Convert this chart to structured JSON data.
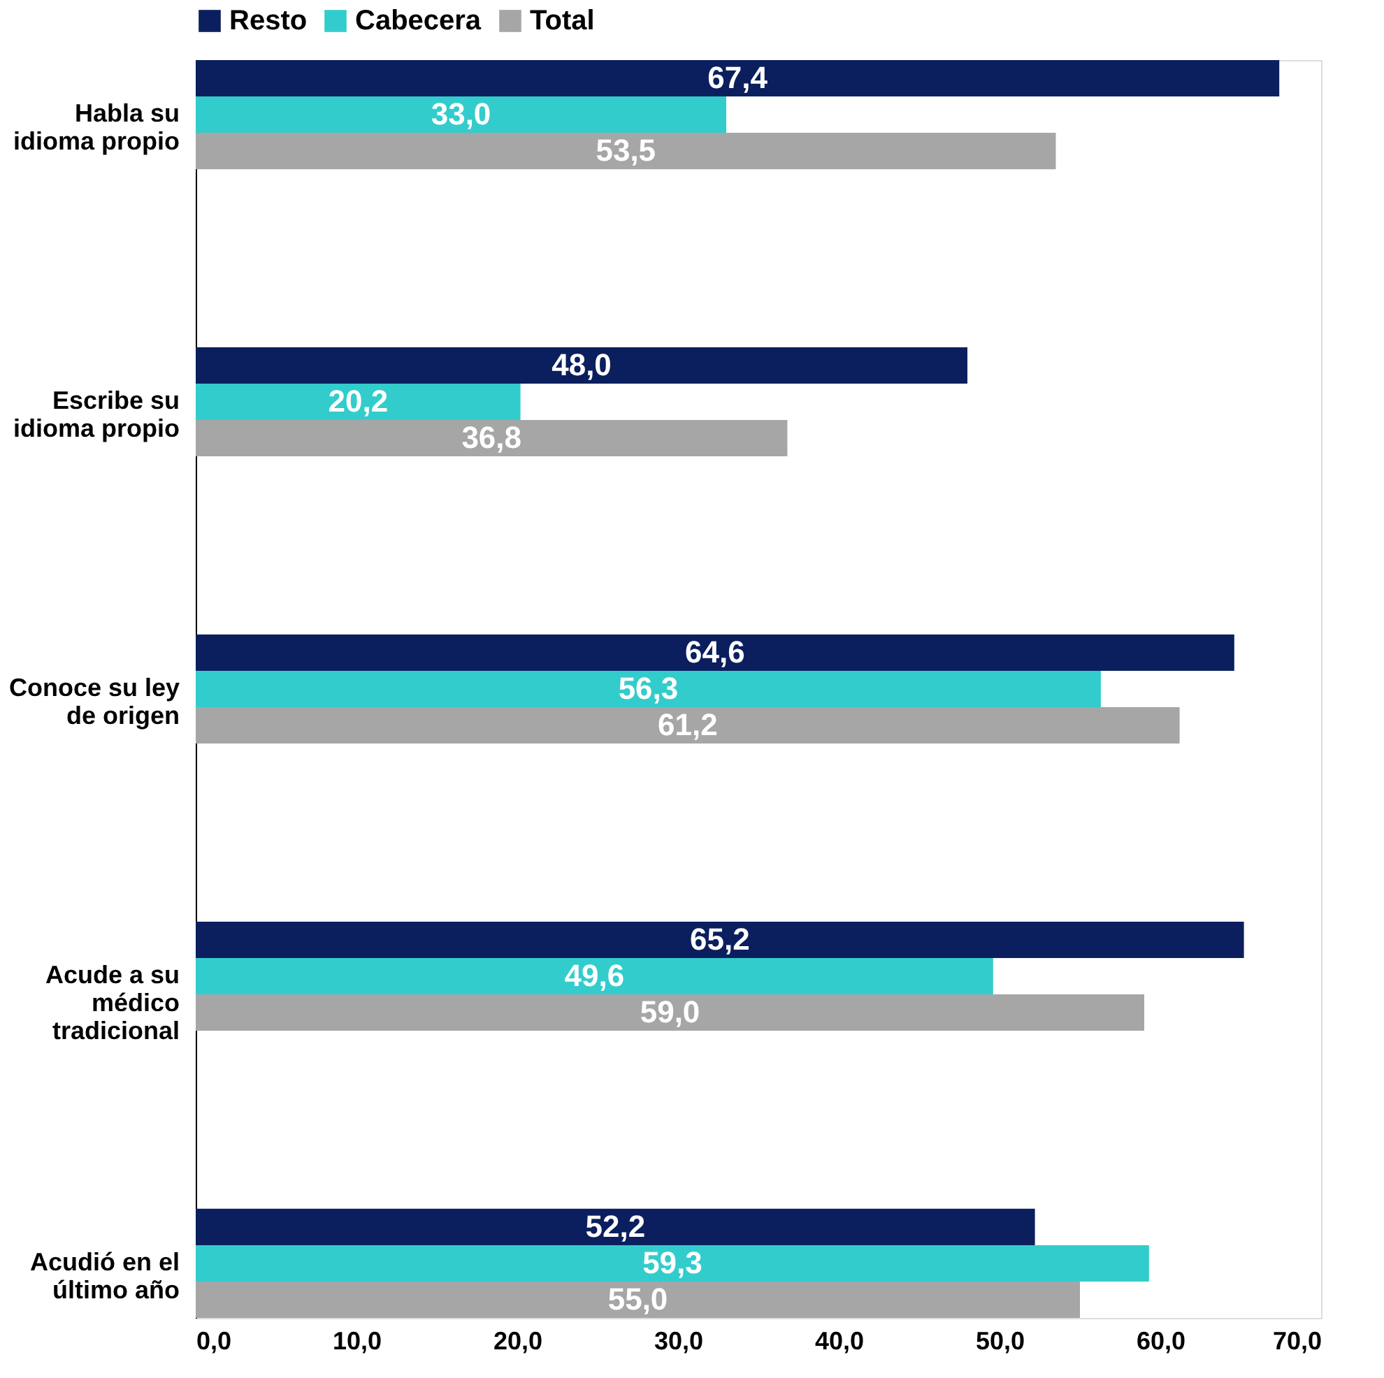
{
  "chart_data": {
    "type": "bar",
    "orientation": "horizontal",
    "categories": [
      "Habla su idioma propio",
      "Escribe su idioma propio",
      "Conoce su ley de origen",
      "Acude a su médico tradicional",
      "Acudió en el último año"
    ],
    "series": [
      {
        "name": "Resto",
        "color": "#0b1f5e",
        "values": [
          67.4,
          48.0,
          64.6,
          65.2,
          52.2
        ],
        "value_labels": [
          "67,4",
          "48,0",
          "64,6",
          "65,2",
          "52,2"
        ]
      },
      {
        "name": "Cabecera",
        "color": "#33cccc",
        "values": [
          33.0,
          20.2,
          56.3,
          49.6,
          59.3
        ],
        "value_labels": [
          "33,0",
          "20,2",
          "56,3",
          "49,6",
          "59,3"
        ]
      },
      {
        "name": "Total",
        "color": "#a6a6a6",
        "values": [
          53.5,
          36.8,
          61.2,
          59.0,
          55.0
        ],
        "value_labels": [
          "53,5",
          "36,8",
          "61,2",
          "59,0",
          "55,0"
        ]
      }
    ],
    "xlim": [
      0,
      70
    ],
    "xticks": [
      {
        "value": 0,
        "label": "0,0"
      },
      {
        "value": 10,
        "label": "10,0"
      },
      {
        "value": 20,
        "label": "20,0"
      },
      {
        "value": 30,
        "label": "30,0"
      },
      {
        "value": 40,
        "label": "40,0"
      },
      {
        "value": 50,
        "label": "50,0"
      },
      {
        "value": 60,
        "label": "60,0"
      },
      {
        "value": 70,
        "label": "70,0"
      }
    ],
    "grid": false,
    "legend": "top"
  }
}
